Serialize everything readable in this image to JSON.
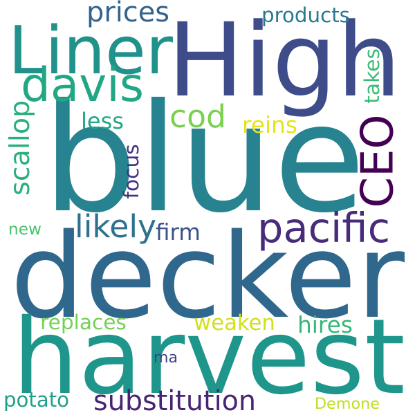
{
  "words": [
    {
      "text": "blue",
      "color": "#26838f"
    },
    {
      "text": "decker",
      "color": "#30678d"
    },
    {
      "text": "harvest",
      "color": "#1f968b"
    },
    {
      "text": "High",
      "color": "#3e4c8a"
    },
    {
      "text": "Liner",
      "color": "#21918c"
    },
    {
      "text": "davis",
      "color": "#22a785"
    },
    {
      "text": "CEO",
      "color": "#440154"
    },
    {
      "text": "pacific",
      "color": "#472c7a"
    },
    {
      "text": "cod",
      "color": "#7ad151"
    },
    {
      "text": "weaken",
      "color": "#d0e11c"
    },
    {
      "text": "substitution",
      "color": "#482475"
    },
    {
      "text": "likely",
      "color": "#2c718e"
    },
    {
      "text": "scallop",
      "color": "#2ab07f"
    },
    {
      "text": "prices",
      "color": "#33638d"
    },
    {
      "text": "products",
      "color": "#2a788e"
    },
    {
      "text": "takes",
      "color": "#3bbb75"
    },
    {
      "text": "focus",
      "color": "#46327e"
    },
    {
      "text": "less",
      "color": "#21a685"
    },
    {
      "text": "reins",
      "color": "#e5e419"
    },
    {
      "text": "firm",
      "color": "#3b528b"
    },
    {
      "text": "new",
      "color": "#4ac16d"
    },
    {
      "text": "replaces",
      "color": "#75d054"
    },
    {
      "text": "hires",
      "color": "#35b779"
    },
    {
      "text": "ma",
      "color": "#414487"
    },
    {
      "text": "potato",
      "color": "#1fa187"
    },
    {
      "text": "Demone",
      "color": "#bddf26"
    }
  ]
}
